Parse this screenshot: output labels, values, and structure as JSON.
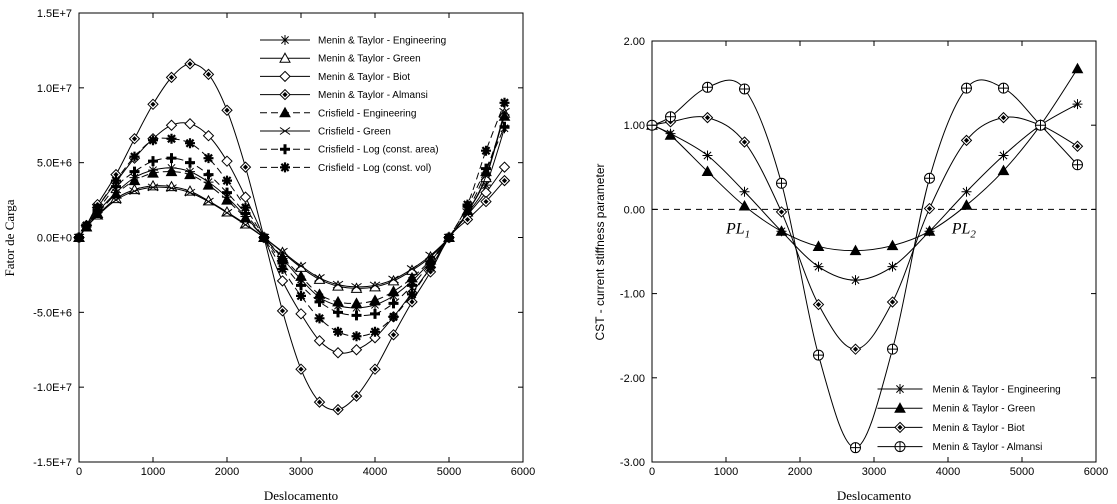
{
  "chart_data": [
    {
      "type": "line",
      "xlabel": "Deslocamento",
      "ylabel": "Fator de Carga",
      "xlim": [
        0,
        6000
      ],
      "ylim": [
        -15000000,
        15000000
      ],
      "x_ticks": [
        "0",
        "1000",
        "2000",
        "3000",
        "4000",
        "5000",
        "6000"
      ],
      "y_ticks": [
        "-1.5E+7",
        "-1.0E+7",
        "-5.0E+6",
        "0.0E+0",
        "5.0E+6",
        "1.0E+7",
        "1.5E+7"
      ],
      "x_tick_values": [
        0,
        1000,
        2000,
        3000,
        4000,
        5000,
        6000
      ],
      "y_tick_values": [
        -15000000,
        -10000000,
        -5000000,
        0,
        5000000,
        10000000,
        15000000
      ],
      "grid": false,
      "legend_position": "top-right",
      "series": [
        {
          "name": "Menin & Taylor - Engineering",
          "marker": "asterisk",
          "line": "solid",
          "x": [
            0,
            100,
            250,
            500,
            750,
            1000,
            1250,
            1500,
            1750,
            2000,
            2250,
            2500,
            2750,
            3000,
            3250,
            3500,
            3750,
            4000,
            4250,
            4500,
            4750,
            5000,
            5250,
            5500,
            5750
          ],
          "y": [
            0,
            750000,
            1700000,
            3000000,
            4000000,
            4500000,
            4650000,
            4400000,
            3700000,
            2700000,
            1400000,
            0,
            -1400000,
            -2800000,
            -4000000,
            -4550000,
            -4700000,
            -4500000,
            -3900000,
            -2900000,
            -1600000,
            0,
            1600000,
            3500000,
            7300000
          ]
        },
        {
          "name": "Menin & Taylor - Green",
          "marker": "triangle-open",
          "line": "solid",
          "x": [
            0,
            100,
            250,
            500,
            750,
            1000,
            1250,
            1500,
            1750,
            2000,
            2250,
            2500,
            2750,
            3000,
            3250,
            3500,
            3750,
            4000,
            4250,
            4500,
            4750,
            5000,
            5250,
            5500,
            5750
          ],
          "y": [
            0,
            700000,
            1500000,
            2600000,
            3200000,
            3450000,
            3400000,
            3100000,
            2450000,
            1700000,
            900000,
            0,
            -1000000,
            -2000000,
            -2800000,
            -3250000,
            -3400000,
            -3300000,
            -2900000,
            -2200000,
            -1300000,
            0,
            1700000,
            4000000,
            8300000
          ]
        },
        {
          "name": "Menin & Taylor - Biot",
          "marker": "diamond-open",
          "line": "solid",
          "x": [
            0,
            100,
            250,
            500,
            750,
            1000,
            1250,
            1500,
            1750,
            2000,
            2250,
            2500,
            2750,
            3000,
            3250,
            3500,
            3750,
            4000,
            4250,
            4500,
            4750,
            5000,
            5250,
            5500,
            5750
          ],
          "y": [
            0,
            800000,
            2000000,
            3700000,
            5300000,
            6600000,
            7500000,
            7600000,
            6800000,
            5100000,
            2700000,
            0,
            -2900000,
            -5100000,
            -6900000,
            -7700000,
            -7500000,
            -6700000,
            -5300000,
            -3700000,
            -2000000,
            0,
            1500000,
            3000000,
            4700000
          ]
        },
        {
          "name": "Menin & Taylor - Almansi",
          "marker": "diamond-filled",
          "line": "solid",
          "x": [
            0,
            100,
            250,
            500,
            750,
            1000,
            1250,
            1500,
            1750,
            2000,
            2250,
            2500,
            2750,
            3000,
            3250,
            3500,
            3750,
            4000,
            4250,
            4500,
            4750,
            5000,
            5250,
            5500,
            5750
          ],
          "y": [
            0,
            800000,
            2200000,
            4200000,
            6600000,
            8900000,
            10700000,
            11600000,
            10900000,
            8500000,
            4700000,
            0,
            -4900000,
            -8800000,
            -11000000,
            -11500000,
            -10600000,
            -8800000,
            -6500000,
            -4300000,
            -2300000,
            0,
            1200000,
            2400000,
            3800000
          ]
        },
        {
          "name": "Crisfield - Engineering",
          "marker": "triangle-filled",
          "line": "dashed",
          "x": [
            0,
            100,
            250,
            500,
            750,
            1000,
            1250,
            1500,
            1750,
            2000,
            2250,
            2500,
            2750,
            3000,
            3250,
            3500,
            3750,
            4000,
            4250,
            4500,
            4750,
            5000,
            5250,
            5500,
            5750
          ],
          "y": [
            0,
            720000,
            1600000,
            2900000,
            3800000,
            4300000,
            4400000,
            4200000,
            3500000,
            2500000,
            1300000,
            0,
            -1300000,
            -2600000,
            -3800000,
            -4300000,
            -4400000,
            -4200000,
            -3600000,
            -2700000,
            -1500000,
            0,
            1800000,
            4400000,
            8100000
          ]
        },
        {
          "name": "Crisfield - Green",
          "marker": "x",
          "line": "solid",
          "x": [
            0,
            100,
            250,
            500,
            750,
            1000,
            1250,
            1500,
            1750,
            2000,
            2250,
            2500,
            2750,
            3000,
            3250,
            3500,
            3750,
            4000,
            4250,
            4500,
            4750,
            5000,
            5250,
            5500,
            5750
          ],
          "y": [
            0,
            680000,
            1450000,
            2500000,
            3100000,
            3350000,
            3300000,
            3000000,
            2400000,
            1650000,
            850000,
            0,
            -950000,
            -1900000,
            -2700000,
            -3150000,
            -3300000,
            -3200000,
            -2800000,
            -2100000,
            -1200000,
            0,
            1700000,
            4100000,
            8400000
          ]
        },
        {
          "name": "Crisfield - Log (const. area)",
          "marker": "plus",
          "line": "dashed",
          "x": [
            0,
            100,
            250,
            500,
            750,
            1000,
            1250,
            1500,
            1750,
            2000,
            2250,
            2500,
            2750,
            3000,
            3250,
            3500,
            3750,
            4000,
            4250,
            4500,
            4750,
            5000,
            5250,
            5500,
            5750
          ],
          "y": [
            0,
            750000,
            1800000,
            3400000,
            4400000,
            5100000,
            5300000,
            5000000,
            4200000,
            3000000,
            1600000,
            0,
            -1700000,
            -3200000,
            -4300000,
            -5000000,
            -5200000,
            -5100000,
            -4400000,
            -3200000,
            -1700000,
            0,
            2100000,
            4600000,
            7400000
          ]
        },
        {
          "name": "Crisfield - Log (const. vol)",
          "marker": "star",
          "line": "dashed",
          "x": [
            0,
            100,
            250,
            500,
            750,
            1000,
            1250,
            1500,
            1750,
            2000,
            2250,
            2500,
            2750,
            3000,
            3250,
            3500,
            3750,
            4000,
            4250,
            4500,
            4750,
            5000,
            5250,
            5500,
            5750
          ],
          "y": [
            0,
            800000,
            2000000,
            3800000,
            5400000,
            6500000,
            6600000,
            6300000,
            5300000,
            3800000,
            2000000,
            0,
            -2100000,
            -3900000,
            -5400000,
            -6300000,
            -6600000,
            -6300000,
            -5300000,
            -3800000,
            -2000000,
            0,
            2200000,
            5800000,
            9000000
          ]
        }
      ]
    },
    {
      "type": "line",
      "xlabel": "Deslocamento",
      "ylabel": "CST - current stiffness parameter",
      "xlim": [
        0,
        6000
      ],
      "ylim": [
        -3,
        2
      ],
      "x_ticks": [
        "0",
        "1000",
        "2000",
        "3000",
        "4000",
        "5000",
        "6000"
      ],
      "y_ticks": [
        "-3.00",
        "-2.00",
        "-1.00",
        "0.00",
        "1.00",
        "2.00"
      ],
      "x_tick_values": [
        0,
        1000,
        2000,
        3000,
        4000,
        5000,
        6000
      ],
      "y_tick_values": [
        -3,
        -2,
        -1,
        0,
        1,
        2
      ],
      "grid": false,
      "legend_position": "bottom-right",
      "reference_line": {
        "y": 0,
        "style": "dashed"
      },
      "annotations": [
        {
          "text": "PL",
          "subscript": "1",
          "x": 1000,
          "y": -0.12
        },
        {
          "text": "PL",
          "subscript": "2",
          "x": 4050,
          "y": -0.12
        }
      ],
      "series": [
        {
          "name": "Menin & Taylor - Engineering",
          "marker": "asterisk",
          "x": [
            0,
            250,
            750,
            1250,
            1750,
            2250,
            2750,
            3250,
            3750,
            4250,
            4750,
            5250,
            5750
          ],
          "y": [
            1.0,
            0.9,
            0.64,
            0.21,
            -0.26,
            -0.68,
            -0.84,
            -0.68,
            -0.26,
            0.21,
            0.64,
            1.0,
            1.25
          ]
        },
        {
          "name": "Menin & Taylor - Green",
          "marker": "triangle-filled",
          "x": [
            0,
            250,
            750,
            1250,
            1750,
            2250,
            2750,
            3250,
            3750,
            4250,
            4750,
            5250,
            5750
          ],
          "y": [
            1.0,
            0.88,
            0.45,
            0.04,
            -0.26,
            -0.44,
            -0.49,
            -0.43,
            -0.26,
            0.05,
            0.46,
            1.0,
            1.67
          ]
        },
        {
          "name": "Menin & Taylor - Biot",
          "marker": "diamond-filled",
          "x": [
            0,
            250,
            750,
            1250,
            1750,
            2250,
            2750,
            3250,
            3750,
            4250,
            4750,
            5250,
            5750
          ],
          "y": [
            1.0,
            1.04,
            1.09,
            0.8,
            -0.03,
            -1.13,
            -1.66,
            -1.1,
            0.01,
            0.82,
            1.09,
            1.0,
            0.75
          ]
        },
        {
          "name": "Menin & Taylor - Almansi",
          "marker": "circle-plus",
          "x": [
            0,
            250,
            750,
            1250,
            1750,
            2250,
            2750,
            3250,
            3750,
            4250,
            4750,
            5250,
            5750
          ],
          "y": [
            1.0,
            1.1,
            1.45,
            1.43,
            0.31,
            -1.73,
            -2.83,
            -1.66,
            0.37,
            1.44,
            1.44,
            1.0,
            0.53
          ]
        }
      ]
    }
  ]
}
